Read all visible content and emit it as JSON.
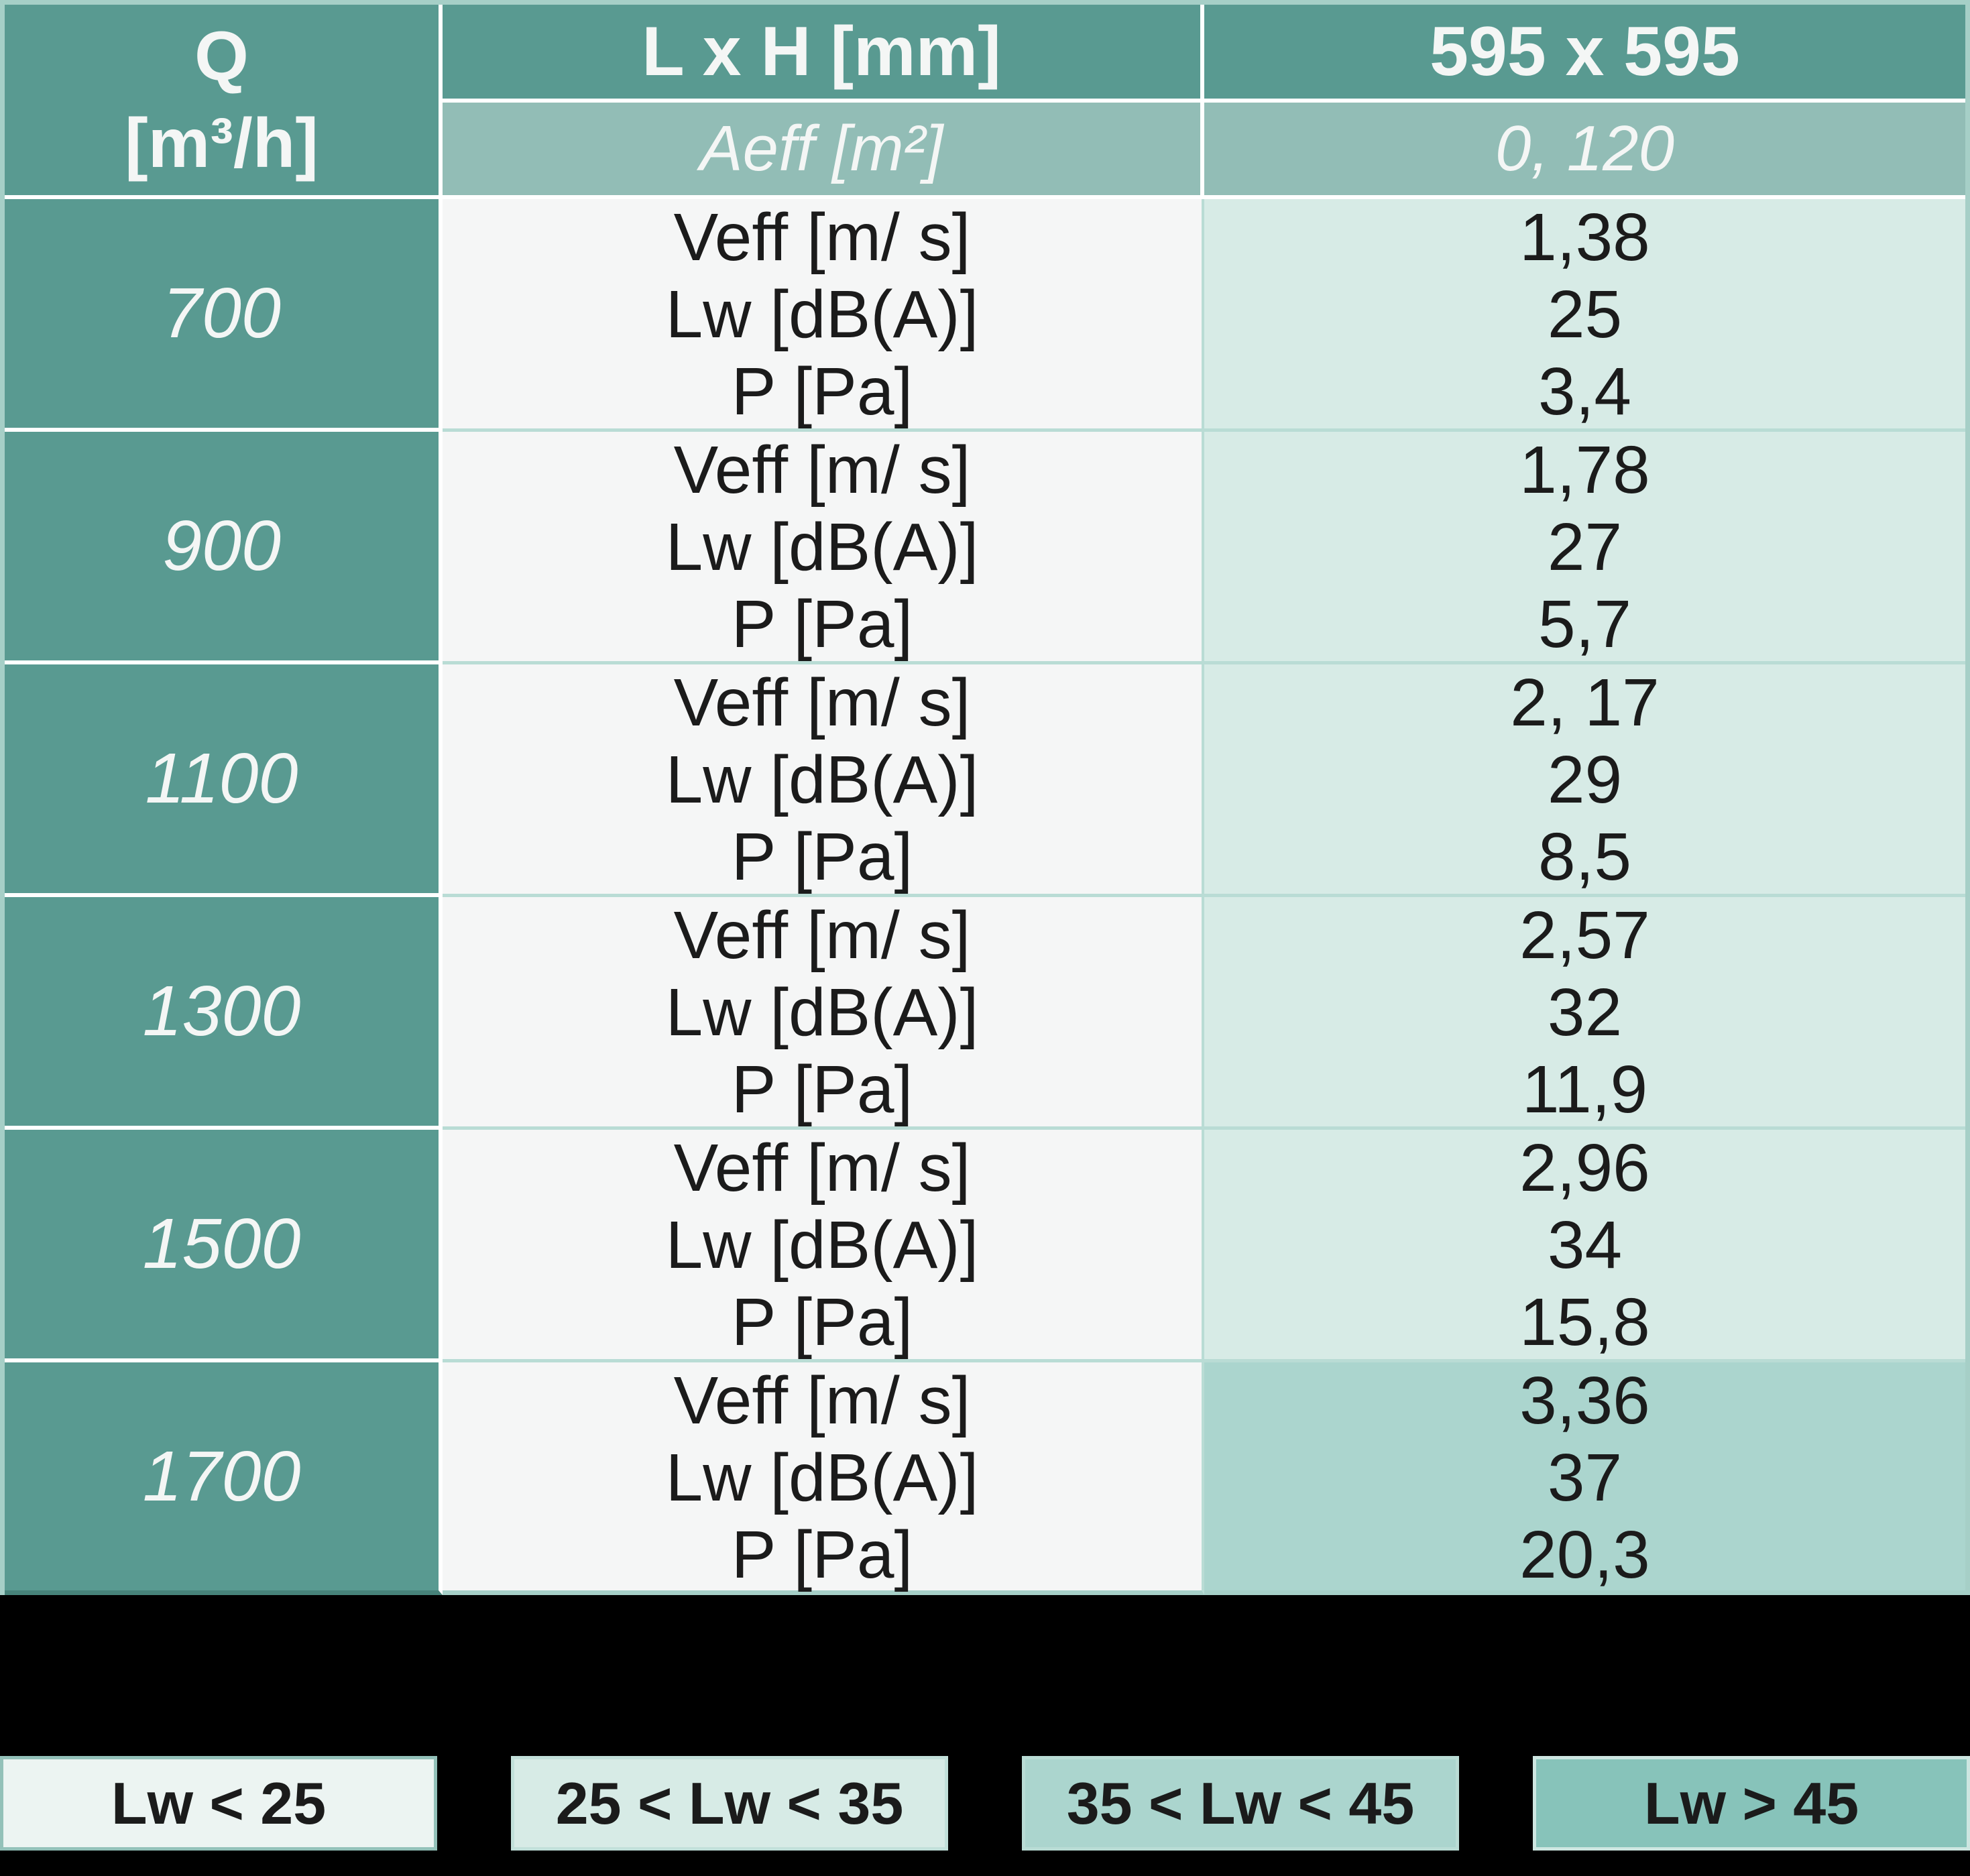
{
  "header": {
    "q_label": "Q",
    "q_unit": "[m³/h]",
    "lxh_label": "L x H [mm]",
    "size_value": "595 x 595",
    "aeff_label": "Aeff [m²]",
    "aeff_value": "0, 120"
  },
  "row_labels": [
    "Veff [m/ s]",
    "Lw [dB(A)]",
    "P [Pa]"
  ],
  "rows": [
    {
      "q": "700",
      "values": [
        "1,38",
        "25",
        "3,4"
      ],
      "band": "25-35"
    },
    {
      "q": "900",
      "values": [
        "1,78",
        "27",
        "5,7"
      ],
      "band": "25-35"
    },
    {
      "q": "1100",
      "values": [
        "2, 17",
        "29",
        "8,5"
      ],
      "band": "25-35"
    },
    {
      "q": "1300",
      "values": [
        "2,57",
        "32",
        "11,9"
      ],
      "band": "25-35"
    },
    {
      "q": "1500",
      "values": [
        "2,96",
        "34",
        "15,8"
      ],
      "band": "25-35"
    },
    {
      "q": "1700",
      "values": [
        "3,36",
        "37",
        "20,3"
      ],
      "band": "35-45"
    }
  ],
  "legend": [
    {
      "label": "Lw < 25",
      "color": "#ecf4f2",
      "border": "#93c1b9"
    },
    {
      "label": "25 < Lw < 35",
      "color": "#d7ebe6",
      "border": "#c2e0da"
    },
    {
      "label": "35 < Lw < 45",
      "color": "#abd5ce",
      "border": "#b9dcd5"
    },
    {
      "label": "Lw > 45",
      "color": "#87c3ba",
      "border": "#cde6e1"
    }
  ],
  "colors": {
    "page_bg": "#000000",
    "teal": "#599a91",
    "teal_light": "#92bdb6",
    "label_bg": "#f5f6f6",
    "value_bg": "#d7ebe6",
    "separator": "#b9dcd5",
    "outer_border": "#a6cfc7",
    "table_bottom_dark": "#47837a",
    "white": "#ffffff",
    "text_dark": "#1b1b1b",
    "text_light": "#f4f6f5"
  }
}
